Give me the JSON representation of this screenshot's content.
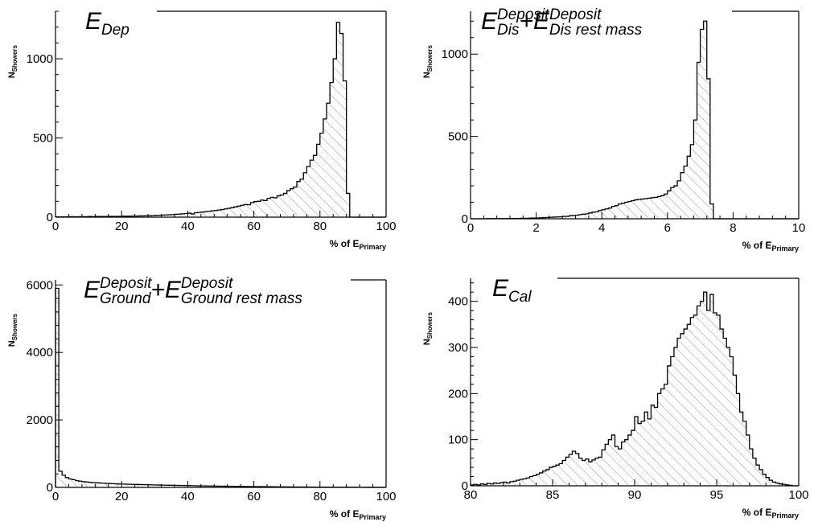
{
  "chart_data": [
    {
      "type": "histogram",
      "title": {
        "parts": [
          {
            "t": "E",
            "s": "main"
          },
          {
            "t": "Dep",
            "s": "sub"
          }
        ]
      },
      "xlabel": {
        "main": "% of E",
        "sub": "Primary"
      },
      "ylabel": {
        "main": "N",
        "sub": "Showers"
      },
      "xlim": [
        0,
        100
      ],
      "ylim": [
        0,
        1300
      ],
      "x_ticks": [
        0,
        20,
        40,
        60,
        80,
        100
      ],
      "y_ticks": [
        0,
        500,
        1000
      ],
      "x": [
        0,
        1,
        2,
        3,
        4,
        5,
        6,
        7,
        8,
        9,
        10,
        11,
        12,
        13,
        14,
        15,
        16,
        17,
        18,
        19,
        20,
        21,
        22,
        23,
        24,
        25,
        26,
        27,
        28,
        29,
        30,
        31,
        32,
        33,
        34,
        35,
        36,
        37,
        38,
        39,
        40,
        41,
        42,
        43,
        44,
        45,
        46,
        47,
        48,
        49,
        50,
        51,
        52,
        53,
        54,
        55,
        56,
        57,
        58,
        59,
        60,
        61,
        62,
        63,
        64,
        65,
        66,
        67,
        68,
        69,
        70,
        71,
        72,
        73,
        74,
        75,
        76,
        77,
        78,
        79,
        80,
        81,
        82,
        83,
        84,
        85,
        86,
        87,
        88,
        89,
        90,
        91,
        92,
        93,
        94,
        95,
        96,
        97,
        98,
        99
      ],
      "values": [
        2,
        1,
        2,
        2,
        3,
        3,
        2,
        3,
        3,
        3,
        4,
        3,
        4,
        4,
        4,
        4,
        5,
        5,
        5,
        5,
        6,
        6,
        6,
        7,
        7,
        8,
        8,
        9,
        9,
        10,
        11,
        12,
        13,
        14,
        15,
        16,
        18,
        19,
        21,
        23,
        25,
        20,
        28,
        30,
        32,
        35,
        37,
        40,
        42,
        45,
        48,
        52,
        56,
        60,
        65,
        70,
        75,
        80,
        78,
        92,
        98,
        100,
        108,
        105,
        118,
        125,
        122,
        135,
        140,
        150,
        168,
        180,
        190,
        225,
        240,
        280,
        320,
        360,
        390,
        460,
        530,
        620,
        720,
        850,
        1000,
        1230,
        1160,
        860,
        150,
        0,
        0,
        0,
        0,
        0,
        0,
        0,
        0,
        0,
        0,
        0
      ]
    },
    {
      "type": "histogram",
      "title": {
        "parts": [
          {
            "t": "E",
            "s": "main"
          },
          {
            "t": "Deposit",
            "s": "sup"
          },
          {
            "t": "Dis",
            "s": "sub"
          },
          {
            "t": "+E",
            "s": "main"
          },
          {
            "t": "Deposit",
            "s": "sup"
          },
          {
            "t": "Dis rest mass",
            "s": "sub"
          }
        ]
      },
      "xlabel": {
        "main": "% of E",
        "sub": "Primary"
      },
      "ylabel": {
        "main": "N",
        "sub": "Showers"
      },
      "xlim": [
        0,
        10
      ],
      "ylim": [
        0,
        1260
      ],
      "x_ticks": [
        0,
        2,
        4,
        6,
        8,
        10
      ],
      "y_ticks": [
        0,
        500,
        1000
      ],
      "x": [
        0,
        0.1,
        0.2,
        0.3,
        0.4,
        0.5,
        0.6,
        0.7,
        0.8,
        0.9,
        1.0,
        1.1,
        1.2,
        1.3,
        1.4,
        1.5,
        1.6,
        1.7,
        1.8,
        1.9,
        2.0,
        2.1,
        2.2,
        2.3,
        2.4,
        2.5,
        2.6,
        2.7,
        2.8,
        2.9,
        3.0,
        3.1,
        3.2,
        3.3,
        3.4,
        3.5,
        3.6,
        3.7,
        3.8,
        3.9,
        4.0,
        4.1,
        4.2,
        4.3,
        4.4,
        4.5,
        4.6,
        4.7,
        4.8,
        4.9,
        5.0,
        5.1,
        5.2,
        5.3,
        5.4,
        5.5,
        5.6,
        5.7,
        5.8,
        5.9,
        6.0,
        6.1,
        6.2,
        6.3,
        6.4,
        6.5,
        6.6,
        6.7,
        6.8,
        6.9,
        7.0,
        7.1,
        7.2,
        7.3,
        7.4,
        7.5,
        7.6,
        7.7,
        7.8,
        7.9,
        8.0,
        8.1,
        8.2,
        8.3,
        8.4,
        8.5,
        8.6,
        8.7,
        8.8,
        8.9,
        9.0,
        9.1,
        9.2,
        9.3,
        9.4,
        9.5,
        9.6,
        9.7,
        9.8,
        9.9
      ],
      "values": [
        0,
        0,
        0,
        0,
        0,
        1,
        1,
        1,
        1,
        1,
        1,
        1,
        2,
        2,
        2,
        3,
        3,
        3,
        4,
        4,
        5,
        6,
        7,
        8,
        9,
        10,
        11,
        12,
        14,
        15,
        18,
        20,
        22,
        25,
        28,
        30,
        35,
        40,
        42,
        50,
        55,
        60,
        65,
        75,
        80,
        90,
        95,
        100,
        105,
        110,
        115,
        118,
        120,
        122,
        125,
        128,
        130,
        135,
        140,
        150,
        170,
        190,
        200,
        230,
        280,
        320,
        380,
        450,
        600,
        950,
        1150,
        1200,
        850,
        90,
        0,
        0,
        0,
        0,
        0,
        0,
        0,
        0,
        0,
        0,
        0,
        0,
        0,
        0,
        0,
        0,
        0,
        0,
        0,
        0,
        0,
        0,
        0,
        0,
        0,
        0
      ]
    },
    {
      "type": "histogram",
      "title": {
        "parts": [
          {
            "t": "E",
            "s": "main"
          },
          {
            "t": "Deposit",
            "s": "sup"
          },
          {
            "t": "Ground",
            "s": "sub"
          },
          {
            "t": "+E",
            "s": "main"
          },
          {
            "t": "Deposit",
            "s": "sup"
          },
          {
            "t": "Ground rest mass",
            "s": "sub"
          }
        ]
      },
      "xlabel": {
        "main": "% of E",
        "sub": "Primary"
      },
      "ylabel": {
        "main": "N",
        "sub": "Showers"
      },
      "xlim": [
        0,
        100
      ],
      "ylim": [
        0,
        6150
      ],
      "x_ticks": [
        0,
        20,
        40,
        60,
        80,
        100
      ],
      "y_ticks": [
        0,
        2000,
        4000,
        6000
      ],
      "x": [
        0,
        1,
        2,
        3,
        4,
        5,
        6,
        7,
        8,
        9,
        10,
        11,
        12,
        13,
        14,
        15,
        16,
        17,
        18,
        19,
        20,
        21,
        22,
        23,
        24,
        25,
        26,
        27,
        28,
        29,
        30,
        31,
        32,
        33,
        34,
        35,
        36,
        37,
        38,
        39,
        40,
        41,
        42,
        43,
        44,
        45,
        46,
        47,
        48,
        49,
        50,
        51,
        52,
        53,
        54,
        55,
        56,
        57,
        58,
        59,
        60,
        61,
        62,
        63,
        64,
        65,
        66,
        67,
        68,
        69,
        70,
        71,
        72,
        73,
        74,
        75,
        76,
        77,
        78,
        79,
        80,
        81,
        82,
        83,
        84,
        85,
        86,
        87,
        88,
        89,
        90,
        91,
        92,
        93,
        94,
        95,
        96,
        97,
        98,
        99
      ],
      "values": [
        5900,
        480,
        360,
        290,
        250,
        230,
        200,
        185,
        170,
        160,
        150,
        140,
        135,
        130,
        125,
        120,
        115,
        110,
        105,
        100,
        98,
        95,
        92,
        90,
        88,
        85,
        82,
        80,
        78,
        75,
        72,
        70,
        68,
        66,
        64,
        62,
        60,
        58,
        56,
        54,
        52,
        50,
        48,
        46,
        45,
        43,
        42,
        40,
        38,
        37,
        36,
        34,
        33,
        32,
        30,
        29,
        28,
        27,
        26,
        25,
        24,
        23,
        22,
        21,
        20,
        19,
        18,
        17,
        16,
        15,
        14,
        13,
        12,
        12,
        11,
        10,
        10,
        9,
        9,
        8,
        8,
        7,
        7,
        6,
        6,
        5,
        5,
        5,
        4,
        4,
        4,
        3,
        3,
        3,
        2,
        2,
        2,
        2,
        1,
        1
      ]
    },
    {
      "type": "histogram",
      "title": {
        "parts": [
          {
            "t": "E",
            "s": "main"
          },
          {
            "t": "Cal",
            "s": "sub"
          }
        ]
      },
      "xlabel": {
        "main": "% of E",
        "sub": "Primary"
      },
      "ylabel": {
        "main": "N",
        "sub": "Showers"
      },
      "xlim": [
        80,
        100
      ],
      "ylim": [
        0,
        450
      ],
      "x_ticks": [
        80,
        85,
        90,
        95,
        100
      ],
      "y_ticks": [
        0,
        100,
        200,
        300,
        400
      ],
      "x": [
        80.0,
        80.2,
        80.4,
        80.6,
        80.8,
        81.0,
        81.2,
        81.4,
        81.6,
        81.8,
        82.0,
        82.2,
        82.4,
        82.6,
        82.8,
        83.0,
        83.2,
        83.4,
        83.6,
        83.8,
        84.0,
        84.2,
        84.4,
        84.6,
        84.8,
        85.0,
        85.2,
        85.4,
        85.6,
        85.8,
        86.0,
        86.2,
        86.4,
        86.6,
        86.8,
        87.0,
        87.2,
        87.4,
        87.6,
        87.8,
        88.0,
        88.2,
        88.4,
        88.6,
        88.8,
        89.0,
        89.2,
        89.4,
        89.6,
        89.8,
        90.0,
        90.2,
        90.4,
        90.6,
        90.8,
        91.0,
        91.2,
        91.4,
        91.6,
        91.8,
        92.0,
        92.2,
        92.4,
        92.6,
        92.8,
        93.0,
        93.2,
        93.4,
        93.6,
        93.8,
        94.0,
        94.2,
        94.4,
        94.6,
        94.8,
        95.0,
        95.2,
        95.4,
        95.6,
        95.8,
        96.0,
        96.2,
        96.4,
        96.6,
        96.8,
        97.0,
        97.2,
        97.4,
        97.6,
        97.8,
        98.0,
        98.2,
        98.4,
        98.6,
        98.8,
        99.0,
        99.2,
        99.4,
        99.6,
        99.8
      ],
      "values": [
        2,
        3,
        2,
        4,
        3,
        5,
        4,
        6,
        5,
        7,
        8,
        6,
        9,
        10,
        12,
        14,
        15,
        17,
        20,
        22,
        25,
        28,
        32,
        35,
        40,
        42,
        45,
        48,
        55,
        62,
        68,
        75,
        70,
        60,
        55,
        58,
        52,
        56,
        60,
        62,
        78,
        90,
        100,
        110,
        85,
        80,
        95,
        100,
        110,
        120,
        150,
        135,
        140,
        160,
        145,
        175,
        170,
        200,
        210,
        220,
        260,
        280,
        300,
        320,
        330,
        340,
        350,
        365,
        370,
        390,
        400,
        420,
        380,
        415,
        375,
        370,
        340,
        320,
        300,
        280,
        240,
        200,
        160,
        140,
        110,
        80,
        60,
        45,
        35,
        25,
        18,
        12,
        8,
        6,
        4,
        3,
        2,
        1,
        0,
        0
      ]
    }
  ]
}
